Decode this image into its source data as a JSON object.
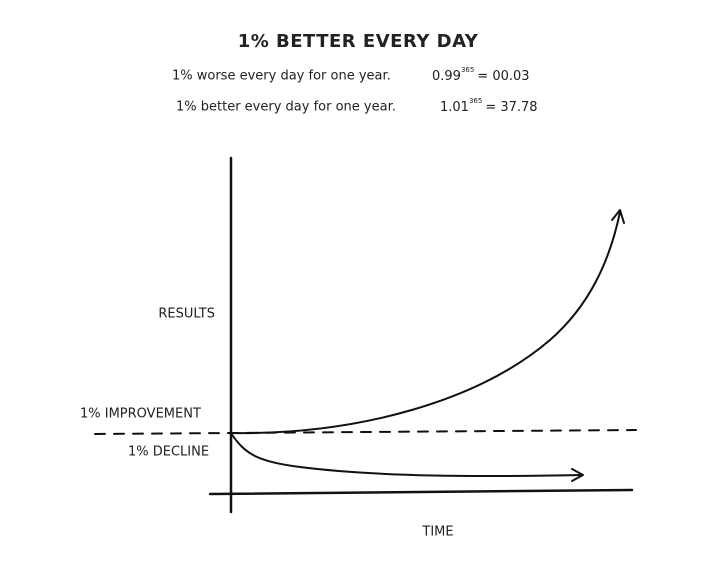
{
  "title": "1% BETTER EVERY DAY",
  "lines": [
    {
      "text": "1% worse every day for one year.",
      "base": "0.99",
      "exponent": "365",
      "result": "= 00.03"
    },
    {
      "text": "1% better every day for one year.",
      "base": "1.01",
      "exponent": "365",
      "result": "= 37.78"
    }
  ],
  "labels": {
    "y_axis": "RESULTS",
    "improvement": "1% IMPROVEMENT",
    "decline": "1% DECLINE",
    "x_axis": "TIME"
  }
}
